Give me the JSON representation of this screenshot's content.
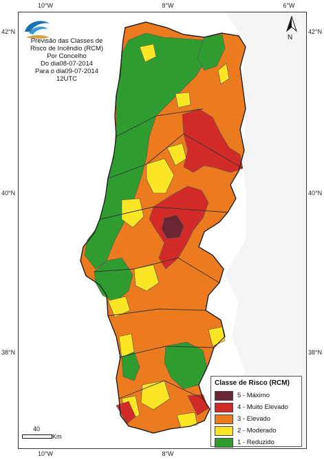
{
  "map": {
    "title_lines": [
      "Previsão das Classes de",
      "Risco de Incêndio (RCM)",
      "Por Concelho",
      "Do dia08-07-2014",
      "Para o dia09-07-2014",
      "12UTC"
    ],
    "top_ticks": [
      "10°W",
      "8°W",
      "6°W"
    ],
    "bottom_ticks": [
      "10°W",
      "8°W"
    ],
    "left_ticks": [
      "42°N",
      "40°N",
      "38°N"
    ],
    "right_ticks": [
      "42°N",
      "40°N",
      "38°N"
    ],
    "north_arrow_label": "N",
    "scale_bar": {
      "value": "40",
      "unit": "Km"
    },
    "legend": {
      "title": "Classe de Risco (RCM)",
      "items": [
        {
          "label": "5 - Máximo",
          "color": "#6b2633"
        },
        {
          "label": "4 - Muito Elevado",
          "color": "#d22b27"
        },
        {
          "label": "3 - Elevado",
          "color": "#ec7a1f"
        },
        {
          "label": "2 - Moderado",
          "color": "#fbe626"
        },
        {
          "label": "1 - Reduzido",
          "color": "#2f9c2f"
        }
      ]
    },
    "colors": {
      "land": "#ec7a1f",
      "background": "#ffffff",
      "spain": "#eeeeee"
    },
    "icons": [
      "logo-icon",
      "north-arrow-icon"
    ]
  }
}
